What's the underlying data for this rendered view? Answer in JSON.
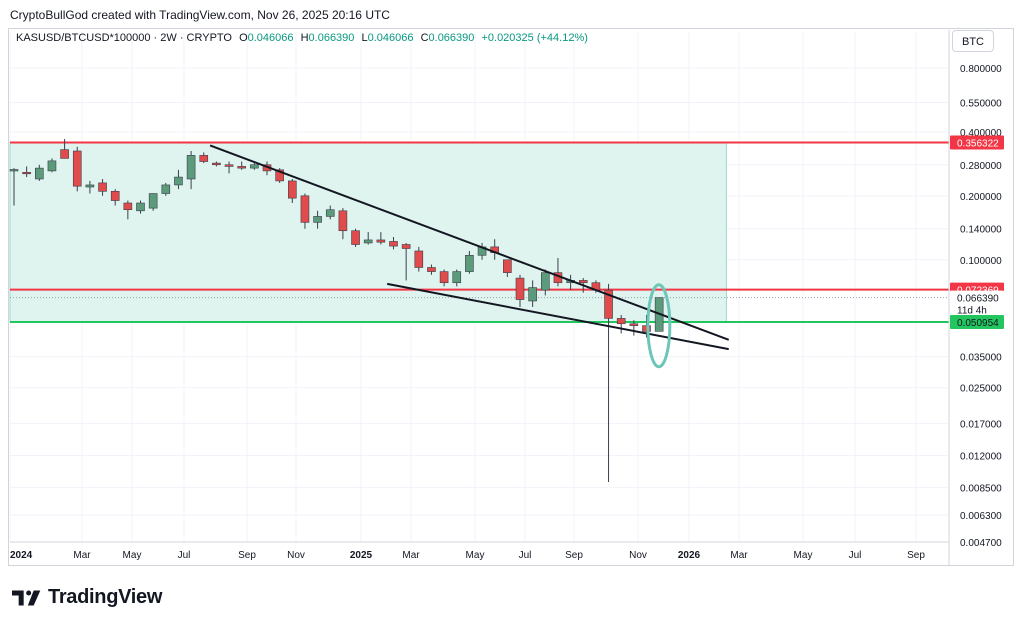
{
  "caption": "CryptoBullGod created with TradingView.com, Nov 26, 2025 20:16 UTC",
  "header": {
    "symbol": "KASUSD/BTCUSD*100000 · 2W · CRYPTO",
    "o_label": "O",
    "o_value": "0.046066",
    "h_label": "H",
    "h_value": "0.066390",
    "l_label": "L",
    "l_value": "0.046066",
    "c_label": "C",
    "c_value": "0.066390",
    "change": "+0.020325 (+44.12%)"
  },
  "currency_button": "BTC",
  "footer_brand": "TradingView",
  "colors": {
    "up": "#5b9a7a",
    "down": "#e04b4b",
    "zone_fill": "#dff3ef",
    "zone_border": "#9fd5cb",
    "red_line": "#f23645",
    "green_line": "#22c55e",
    "ellipse": "#6cc7b8",
    "trend": "#131722"
  },
  "chart_data": {
    "type": "candlestick",
    "scale": "log",
    "ylim": [
      0.0047,
      1.0
    ],
    "y_ticks": [
      "0.800000",
      "0.550000",
      "0.400000",
      "0.280000",
      "0.200000",
      "0.140000",
      "0.100000",
      "0.035000",
      "0.025000",
      "0.017000",
      "0.012000",
      "0.008500",
      "0.006300",
      "0.004700"
    ],
    "x_labels": [
      "2024",
      "Mar",
      "May",
      "Jul",
      "Sep",
      "Nov",
      "2025",
      "Mar",
      "May",
      "Jul",
      "Sep",
      "Nov",
      "2026",
      "Mar",
      "May",
      "Jul",
      "Sep"
    ],
    "bold_x_labels": [
      "2024",
      "2025",
      "2026"
    ],
    "price_tags": [
      {
        "label": "0.356322",
        "value": 0.356322,
        "kind": "red"
      },
      {
        "label": "0.072369",
        "value": 0.072369,
        "kind": "red"
      },
      {
        "label": "0.066390",
        "value": 0.06639,
        "kind": "current"
      },
      {
        "label": "11d 4h",
        "value": 0.06639,
        "kind": "countdown"
      },
      {
        "label": "0.050954",
        "value": 0.050954,
        "kind": "green"
      }
    ],
    "horizontal_levels": [
      {
        "value": 0.356322,
        "color": "red"
      },
      {
        "value": 0.072369,
        "color": "red"
      },
      {
        "value": 0.050954,
        "color": "green"
      }
    ],
    "zone": {
      "top": 0.356322,
      "bottom": 0.050954,
      "from_bar": 0,
      "to_bar": 56
    },
    "trendlines": [
      {
        "from": {
          "bar": 15.5,
          "value": 0.345
        },
        "to": {
          "bar": 56.5,
          "value": 0.042
        }
      },
      {
        "from": {
          "bar": 29.5,
          "value": 0.077
        },
        "to": {
          "bar": 56.5,
          "value": 0.038
        }
      }
    ],
    "ellipse": {
      "bar": 50.5,
      "value": 0.05
    },
    "candles": [
      {
        "o": 0.262,
        "h": 0.27,
        "l": 0.18,
        "c": 0.266
      },
      {
        "o": 0.258,
        "h": 0.275,
        "l": 0.245,
        "c": 0.255
      },
      {
        "o": 0.24,
        "h": 0.28,
        "l": 0.235,
        "c": 0.27
      },
      {
        "o": 0.262,
        "h": 0.3,
        "l": 0.258,
        "c": 0.292
      },
      {
        "o": 0.33,
        "h": 0.37,
        "l": 0.3,
        "c": 0.3
      },
      {
        "o": 0.325,
        "h": 0.34,
        "l": 0.21,
        "c": 0.222
      },
      {
        "o": 0.22,
        "h": 0.235,
        "l": 0.205,
        "c": 0.225
      },
      {
        "o": 0.23,
        "h": 0.24,
        "l": 0.2,
        "c": 0.21
      },
      {
        "o": 0.21,
        "h": 0.215,
        "l": 0.18,
        "c": 0.19
      },
      {
        "o": 0.185,
        "h": 0.19,
        "l": 0.155,
        "c": 0.172
      },
      {
        "o": 0.17,
        "h": 0.19,
        "l": 0.165,
        "c": 0.185
      },
      {
        "o": 0.175,
        "h": 0.205,
        "l": 0.17,
        "c": 0.205
      },
      {
        "o": 0.205,
        "h": 0.23,
        "l": 0.2,
        "c": 0.225
      },
      {
        "o": 0.225,
        "h": 0.265,
        "l": 0.215,
        "c": 0.245
      },
      {
        "o": 0.24,
        "h": 0.325,
        "l": 0.215,
        "c": 0.31
      },
      {
        "o": 0.31,
        "h": 0.32,
        "l": 0.285,
        "c": 0.29
      },
      {
        "o": 0.285,
        "h": 0.29,
        "l": 0.275,
        "c": 0.28
      },
      {
        "o": 0.28,
        "h": 0.29,
        "l": 0.255,
        "c": 0.275
      },
      {
        "o": 0.275,
        "h": 0.29,
        "l": 0.265,
        "c": 0.27
      },
      {
        "o": 0.27,
        "h": 0.285,
        "l": 0.265,
        "c": 0.28
      },
      {
        "o": 0.28,
        "h": 0.29,
        "l": 0.25,
        "c": 0.262
      },
      {
        "o": 0.265,
        "h": 0.27,
        "l": 0.23,
        "c": 0.235
      },
      {
        "o": 0.235,
        "h": 0.24,
        "l": 0.185,
        "c": 0.195
      },
      {
        "o": 0.2,
        "h": 0.205,
        "l": 0.14,
        "c": 0.15
      },
      {
        "o": 0.15,
        "h": 0.17,
        "l": 0.14,
        "c": 0.16
      },
      {
        "o": 0.16,
        "h": 0.18,
        "l": 0.155,
        "c": 0.172
      },
      {
        "o": 0.17,
        "h": 0.175,
        "l": 0.125,
        "c": 0.137
      },
      {
        "o": 0.137,
        "h": 0.14,
        "l": 0.115,
        "c": 0.118
      },
      {
        "o": 0.12,
        "h": 0.135,
        "l": 0.118,
        "c": 0.124
      },
      {
        "o": 0.124,
        "h": 0.135,
        "l": 0.118,
        "c": 0.121
      },
      {
        "o": 0.122,
        "h": 0.128,
        "l": 0.112,
        "c": 0.116
      },
      {
        "o": 0.118,
        "h": 0.12,
        "l": 0.08,
        "c": 0.113
      },
      {
        "o": 0.11,
        "h": 0.115,
        "l": 0.088,
        "c": 0.092
      },
      {
        "o": 0.092,
        "h": 0.095,
        "l": 0.085,
        "c": 0.088
      },
      {
        "o": 0.088,
        "h": 0.09,
        "l": 0.075,
        "c": 0.078
      },
      {
        "o": 0.078,
        "h": 0.09,
        "l": 0.075,
        "c": 0.088
      },
      {
        "o": 0.088,
        "h": 0.11,
        "l": 0.086,
        "c": 0.105
      },
      {
        "o": 0.105,
        "h": 0.12,
        "l": 0.1,
        "c": 0.115
      },
      {
        "o": 0.115,
        "h": 0.125,
        "l": 0.1,
        "c": 0.108
      },
      {
        "o": 0.1,
        "h": 0.1,
        "l": 0.083,
        "c": 0.087
      },
      {
        "o": 0.082,
        "h": 0.085,
        "l": 0.06,
        "c": 0.065
      },
      {
        "o": 0.064,
        "h": 0.08,
        "l": 0.06,
        "c": 0.074
      },
      {
        "o": 0.072,
        "h": 0.09,
        "l": 0.068,
        "c": 0.087
      },
      {
        "o": 0.087,
        "h": 0.102,
        "l": 0.075,
        "c": 0.078
      },
      {
        "o": 0.078,
        "h": 0.085,
        "l": 0.072,
        "c": 0.08
      },
      {
        "o": 0.08,
        "h": 0.082,
        "l": 0.07,
        "c": 0.078
      },
      {
        "o": 0.078,
        "h": 0.08,
        "l": 0.07,
        "c": 0.072
      },
      {
        "o": 0.072,
        "h": 0.077,
        "l": 0.009,
        "c": 0.053
      },
      {
        "o": 0.053,
        "h": 0.055,
        "l": 0.045,
        "c": 0.05
      },
      {
        "o": 0.05,
        "h": 0.052,
        "l": 0.044,
        "c": 0.049
      },
      {
        "o": 0.049,
        "h": 0.055,
        "l": 0.043,
        "c": 0.046
      },
      {
        "o": 0.046066,
        "h": 0.06639,
        "l": 0.046066,
        "c": 0.06639
      }
    ]
  }
}
